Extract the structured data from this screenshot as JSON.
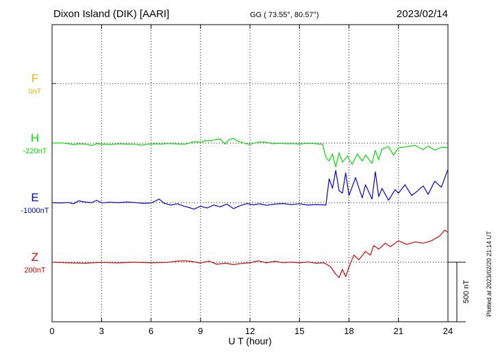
{
  "header": {
    "station": "Dixon Island (DIK)  [AARI]",
    "coords": "GG ( 73.55°,  80.57°)",
    "date": "2023/02/14"
  },
  "footer": {
    "plotted": "Plotted at 2023/02/20 21:14 UT"
  },
  "chart_data": {
    "type": "line",
    "xlabel": "U T (hour)",
    "xlim": [
      0,
      24
    ],
    "x_ticks": [
      0,
      3,
      6,
      9,
      12,
      15,
      18,
      21,
      24
    ],
    "grid": true,
    "scale_bar": {
      "label": "500 nT",
      "value_nT": 500
    },
    "series": [
      {
        "name": "F",
        "baseline_label": "0nT",
        "color": "#f0b400",
        "values": []
      },
      {
        "name": "H",
        "baseline_label": "-220nT",
        "color": "#00e000",
        "values": [
          [
            0.0,
            0
          ],
          [
            0.5,
            2
          ],
          [
            1.0,
            -5
          ],
          [
            1.3,
            -12
          ],
          [
            1.6,
            -6
          ],
          [
            2.0,
            -8
          ],
          [
            2.4,
            -20
          ],
          [
            2.7,
            -5
          ],
          [
            3.0,
            -8
          ],
          [
            3.5,
            -12
          ],
          [
            4.0,
            -6
          ],
          [
            4.5,
            -8
          ],
          [
            5.0,
            -10
          ],
          [
            5.4,
            -18
          ],
          [
            5.8,
            -10
          ],
          [
            6.2,
            -6
          ],
          [
            6.6,
            -8
          ],
          [
            7.0,
            -4
          ],
          [
            7.5,
            -6
          ],
          [
            8.0,
            -10
          ],
          [
            8.3,
            -2
          ],
          [
            8.6,
            12
          ],
          [
            9.0,
            6
          ],
          [
            9.3,
            20
          ],
          [
            9.6,
            18
          ],
          [
            9.9,
            28
          ],
          [
            10.2,
            35
          ],
          [
            10.5,
            -8
          ],
          [
            10.7,
            25
          ],
          [
            11.0,
            40
          ],
          [
            11.2,
            20
          ],
          [
            11.5,
            5
          ],
          [
            11.8,
            -5
          ],
          [
            12.0,
            -10
          ],
          [
            12.3,
            2
          ],
          [
            12.6,
            10
          ],
          [
            13.0,
            6
          ],
          [
            13.4,
            -5
          ],
          [
            13.8,
            -2
          ],
          [
            14.2,
            -6
          ],
          [
            14.6,
            -4
          ],
          [
            15.0,
            -8
          ],
          [
            15.5,
            -2
          ],
          [
            16.0,
            -5
          ],
          [
            16.4,
            -10
          ],
          [
            16.6,
            -120
          ],
          [
            16.8,
            -150
          ],
          [
            17.0,
            -90
          ],
          [
            17.2,
            -200
          ],
          [
            17.4,
            -80
          ],
          [
            17.6,
            -160
          ],
          [
            17.9,
            -110
          ],
          [
            18.2,
            -180
          ],
          [
            18.5,
            -90
          ],
          [
            18.8,
            -150
          ],
          [
            19.0,
            -100
          ],
          [
            19.4,
            -170
          ],
          [
            19.6,
            -60
          ],
          [
            19.8,
            -140
          ],
          [
            20.0,
            -50
          ],
          [
            20.4,
            -30
          ],
          [
            20.7,
            -100
          ],
          [
            21.0,
            -40
          ],
          [
            21.5,
            -30
          ],
          [
            22.0,
            -20
          ],
          [
            22.5,
            -55
          ],
          [
            22.8,
            -25
          ],
          [
            23.2,
            -60
          ],
          [
            23.6,
            -35
          ],
          [
            24.0,
            -40
          ]
        ]
      },
      {
        "name": "E",
        "baseline_label": "-1000nT",
        "color": "#0000e0",
        "values": [
          [
            0.0,
            0
          ],
          [
            0.5,
            -3
          ],
          [
            1.0,
            2
          ],
          [
            1.3,
            -10
          ],
          [
            1.6,
            15
          ],
          [
            2.0,
            5
          ],
          [
            2.4,
            0
          ],
          [
            2.7,
            20
          ],
          [
            3.0,
            -2
          ],
          [
            3.5,
            4
          ],
          [
            4.0,
            0
          ],
          [
            4.5,
            5
          ],
          [
            5.0,
            2
          ],
          [
            5.5,
            -6
          ],
          [
            6.0,
            -3
          ],
          [
            6.5,
            30
          ],
          [
            6.8,
            -5
          ],
          [
            7.2,
            -20
          ],
          [
            7.6,
            -10
          ],
          [
            8.0,
            -30
          ],
          [
            8.3,
            -40
          ],
          [
            8.6,
            -55
          ],
          [
            9.0,
            -30
          ],
          [
            9.4,
            -45
          ],
          [
            9.8,
            -20
          ],
          [
            10.2,
            -35
          ],
          [
            10.6,
            -12
          ],
          [
            11.0,
            -50
          ],
          [
            11.4,
            -25
          ],
          [
            11.8,
            -8
          ],
          [
            12.2,
            -18
          ],
          [
            12.6,
            -10
          ],
          [
            13.0,
            -22
          ],
          [
            13.5,
            -12
          ],
          [
            14.0,
            -8
          ],
          [
            14.5,
            -16
          ],
          [
            15.0,
            -10
          ],
          [
            15.5,
            -20
          ],
          [
            16.0,
            -15
          ],
          [
            16.6,
            -20
          ],
          [
            16.8,
            200
          ],
          [
            17.0,
            120
          ],
          [
            17.2,
            270
          ],
          [
            17.4,
            100
          ],
          [
            17.6,
            80
          ],
          [
            17.8,
            250
          ],
          [
            18.0,
            60
          ],
          [
            18.4,
            210
          ],
          [
            18.8,
            40
          ],
          [
            19.0,
            150
          ],
          [
            19.4,
            30
          ],
          [
            19.6,
            260
          ],
          [
            19.8,
            50
          ],
          [
            20.0,
            120
          ],
          [
            20.4,
            20
          ],
          [
            20.8,
            110
          ],
          [
            21.0,
            80
          ],
          [
            21.4,
            150
          ],
          [
            21.8,
            60
          ],
          [
            22.0,
            80
          ],
          [
            22.5,
            140
          ],
          [
            22.8,
            70
          ],
          [
            23.2,
            180
          ],
          [
            23.6,
            130
          ],
          [
            24.0,
            280
          ]
        ]
      },
      {
        "name": "Z",
        "baseline_label": "200nT",
        "color": "#e00000",
        "values": [
          [
            0.0,
            0
          ],
          [
            1.0,
            -5
          ],
          [
            2.0,
            -8
          ],
          [
            3.0,
            -2
          ],
          [
            4.0,
            -6
          ],
          [
            5.0,
            0
          ],
          [
            6.0,
            -5
          ],
          [
            7.0,
            -2
          ],
          [
            7.5,
            8
          ],
          [
            8.0,
            12
          ],
          [
            8.5,
            6
          ],
          [
            9.0,
            -8
          ],
          [
            9.5,
            10
          ],
          [
            10.0,
            -18
          ],
          [
            10.5,
            -8
          ],
          [
            11.0,
            -20
          ],
          [
            11.5,
            -10
          ],
          [
            12.0,
            -5
          ],
          [
            12.5,
            12
          ],
          [
            13.0,
            -6
          ],
          [
            13.5,
            8
          ],
          [
            14.0,
            -4
          ],
          [
            14.5,
            0
          ],
          [
            15.0,
            -5
          ],
          [
            15.5,
            2
          ],
          [
            16.0,
            -8
          ],
          [
            16.5,
            -5
          ],
          [
            16.9,
            -40
          ],
          [
            17.2,
            -100
          ],
          [
            17.4,
            -130
          ],
          [
            17.6,
            -60
          ],
          [
            17.8,
            -120
          ],
          [
            18.0,
            -40
          ],
          [
            18.3,
            60
          ],
          [
            18.6,
            20
          ],
          [
            19.0,
            90
          ],
          [
            19.3,
            60
          ],
          [
            19.5,
            140
          ],
          [
            19.8,
            110
          ],
          [
            20.2,
            160
          ],
          [
            20.5,
            130
          ],
          [
            21.0,
            180
          ],
          [
            21.5,
            150
          ],
          [
            22.0,
            170
          ],
          [
            22.5,
            160
          ],
          [
            23.0,
            180
          ],
          [
            23.5,
            220
          ],
          [
            23.8,
            270
          ],
          [
            24.0,
            250
          ]
        ]
      }
    ]
  }
}
